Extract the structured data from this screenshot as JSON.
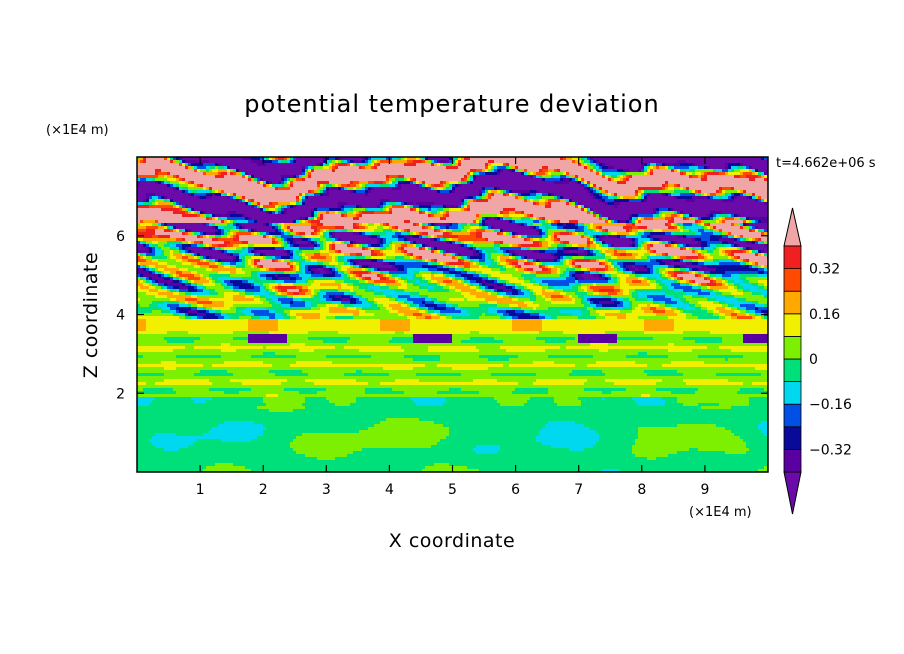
{
  "chart_data": {
    "type": "heatmap",
    "title": "potential temperature deviation",
    "xlabel": "X coordinate",
    "ylabel": "Z coordinate",
    "x_unit": "(×1E4 m)",
    "y_unit": "(×1E4 m)",
    "time_label": "t=4.662e+06 s",
    "xlim": [
      0,
      10
    ],
    "ylim": [
      0,
      8
    ],
    "x_ticks": [
      "1",
      "2",
      "3",
      "4",
      "5",
      "6",
      "7",
      "8",
      "9"
    ],
    "y_ticks": [
      "2",
      "4",
      "6"
    ],
    "colorbar": {
      "ticks": [
        "0.32",
        "0.16",
        "0",
        "-0.16",
        "-0.32"
      ],
      "levels": [
        -0.4,
        -0.32,
        -0.24,
        -0.16,
        -0.08,
        0,
        0.08,
        0.16,
        0.24,
        0.32,
        0.4
      ],
      "colors": [
        "#5a00a0",
        "#0a0a9a",
        "#0050e6",
        "#00d8f0",
        "#00e07a",
        "#7cf000",
        "#f0f000",
        "#ffa800",
        "#ff4a00",
        "#f02020"
      ],
      "over_color": "#f0a6a6",
      "under_color": "#6a0aa8"
    },
    "layers": [
      {
        "z": [
          0,
          1.9
        ],
        "field": "green lower layer with lime plumes"
      },
      {
        "z": [
          1.9,
          3.9
        ],
        "field": "banded green/lime layers"
      },
      {
        "z": [
          3.9,
          6.3
        ],
        "field": "turbulent mixed layer"
      },
      {
        "z": [
          6.3,
          8
        ],
        "field": "pink/purple stratified bands"
      }
    ]
  }
}
